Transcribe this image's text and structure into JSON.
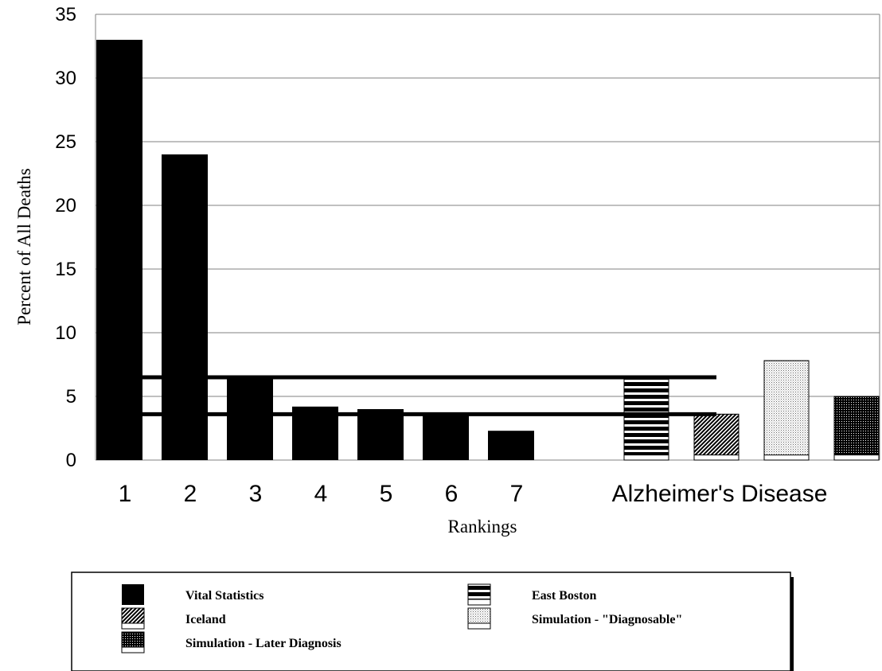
{
  "chart_data": {
    "type": "bar",
    "xlabel": "Rankings",
    "ylabel": "Percent of All Deaths",
    "ylim": [
      0,
      35
    ],
    "yticks": [
      0,
      5,
      10,
      15,
      20,
      25,
      30,
      35
    ],
    "grid": true,
    "legend_position": "bottom",
    "rank_categories": [
      "1",
      "2",
      "3",
      "4",
      "5",
      "6",
      "7"
    ],
    "group_label": "Alzheimer's Disease",
    "series": [
      {
        "name": "Vital Statistics",
        "pattern": "solid",
        "values": [
          33,
          24,
          6.5,
          4.2,
          4.0,
          3.6,
          2.3
        ]
      },
      {
        "name": "East Boston",
        "pattern": "horizontal",
        "group": "Alzheimer's Disease",
        "value": 6.5,
        "base": 0.4
      },
      {
        "name": "Iceland",
        "pattern": "diagonal",
        "group": "Alzheimer's Disease",
        "value": 3.6,
        "base": 0.4
      },
      {
        "name": "Simulation - \"Diagnosable\"",
        "pattern": "light-dots",
        "group": "Alzheimer's Disease",
        "value": 7.8,
        "base": 0.4
      },
      {
        "name": "Simulation - Later Diagnosis",
        "pattern": "dark-dots",
        "group": "Alzheimer's Disease",
        "value": 5.0,
        "base": 0.4
      }
    ],
    "reference_lines": [
      6.5,
      3.6
    ]
  },
  "colors": {
    "bar": "#000000",
    "grid": "#808080",
    "background": "#ffffff"
  }
}
